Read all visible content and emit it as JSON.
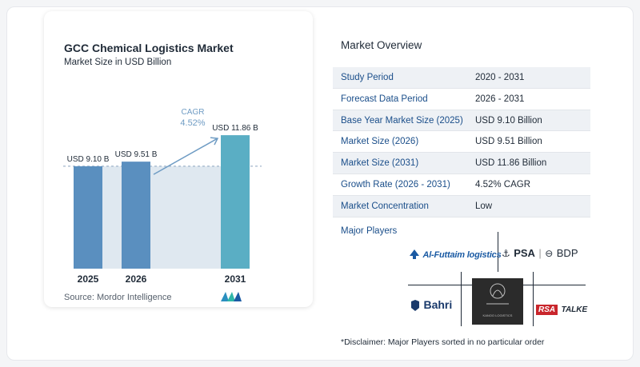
{
  "chart_data": {
    "type": "bar",
    "title": "GCC Chemical Logistics Market",
    "subtitle": "Market Size in USD Billion",
    "categories": [
      "2025",
      "2026",
      "2031"
    ],
    "values": [
      9.1,
      9.51,
      11.86
    ],
    "value_labels": [
      "USD 9.10 B",
      "USD 9.51 B",
      "USD 11.86 B"
    ],
    "cagr_label": "CAGR",
    "cagr_value": "4.52%",
    "ylim": [
      0,
      13.5
    ],
    "bar_color": "#5a8fbf",
    "bar_color_last": "#5aaec4",
    "shade_color": "#dfe8f0"
  },
  "source": "Source:  Mordor Intelligence",
  "overview": {
    "title": "Market Overview",
    "rows": [
      {
        "label": "Study Period",
        "value": "2020 - 2031"
      },
      {
        "label": "Forecast Data Period",
        "value": "2026 - 2031"
      },
      {
        "label": "Base Year Market Size (2025)",
        "value": "USD 9.10 Billion"
      },
      {
        "label": "Market Size (2026)",
        "value": "USD 9.51 Billion"
      },
      {
        "label": "Market Size (2031)",
        "value": "USD 11.86 Billion"
      },
      {
        "label": "Growth Rate (2026 - 2031)",
        "value": "4.52% CAGR"
      },
      {
        "label": "Market Concentration",
        "value": "Low"
      }
    ]
  },
  "players": {
    "title": "Major Players",
    "logos": {
      "alfuttaim": "Al-Futtaim logistics",
      "psa": "PSA",
      "bdp": "BDP",
      "bahri": "Bahri",
      "kanoo": "KANOO LOGISTICS",
      "rsa": "RSA",
      "talke": "TALKE"
    }
  },
  "disclaimer": "*Disclaimer: Major Players sorted in no particular order",
  "colors": {
    "label_blue": "#1a4e8a",
    "row_alt": "#eef1f5"
  }
}
